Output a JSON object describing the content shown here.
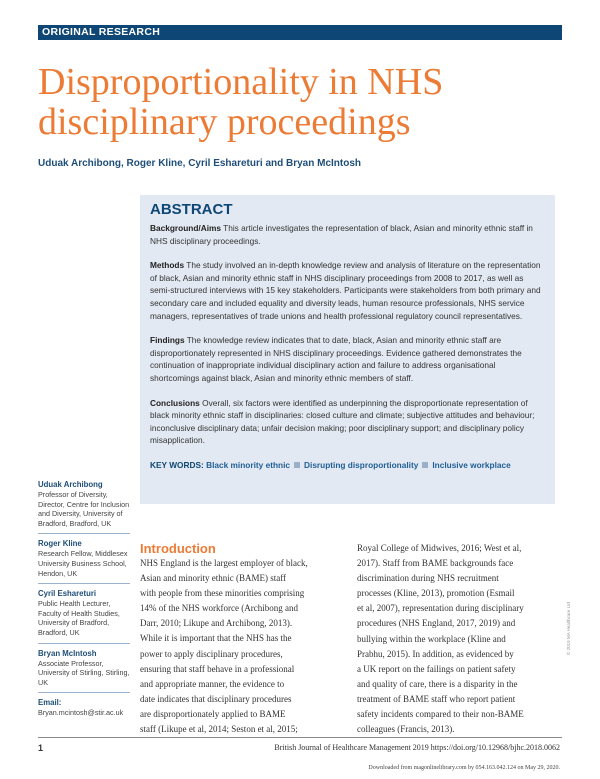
{
  "header": {
    "section": "ORIGINAL RESEARCH"
  },
  "title": {
    "line1": "Disproportionality in NHS",
    "line2": "disciplinary proceedings"
  },
  "authors": "Uduak Archibong, Roger Kline, Cyril Eshareturi and Bryan McIntosh",
  "abstract": {
    "heading": "ABSTRACT",
    "background_label": "Background/Aims",
    "background": "This article investigates the representation of black, Asian and minority ethnic staff in NHS disciplinary proceedings.",
    "methods_label": "Methods",
    "methods": "The study involved an in-depth knowledge review and analysis of literature on the representation of black, Asian and minority ethnic staff in NHS disciplinary proceedings from 2008 to 2017, as well as semi-structured interviews with 15 key stakeholders. Participants were stakeholders from both primary and secondary care and included equality and diversity leads, human resource professionals, NHS service managers, representatives of trade unions and health professional regulatory council representatives.",
    "findings_label": "Findings",
    "findings": "The knowledge review indicates that to date, black, Asian and minority ethnic staff are disproportionately represented in NHS disciplinary proceedings. Evidence gathered demonstrates the continuation of inappropriate individual disciplinary action and failure to address organisational shortcomings against black, Asian and minority ethnic members of staff.",
    "conclusions_label": "Conclusions",
    "conclusions": "Overall, six factors were identified as underpinning the disproportionate representation of black minority ethnic staff in disciplinaries: closed culture and climate; subjective attitudes and behaviour; inconclusive disciplinary data; unfair decision making; poor disciplinary support; and disciplinary policy misapplication.",
    "keywords_label": "KEY WORDS:",
    "keywords": [
      "Black minority ethnic",
      "Disrupting disproportionality",
      "Inclusive workplace"
    ]
  },
  "affiliations": [
    {
      "name": "Uduak Archibong",
      "detail": "Professor of Diversity, Director, Centre for Inclusion and Diversity, University of Bradford, Bradford, UK"
    },
    {
      "name": "Roger Kline",
      "detail": "Research Fellow, Middlesex University Business School, Hendon, UK"
    },
    {
      "name": "Cyril Eshareturi",
      "detail": "Public Health Lecturer, Faculty of Health Studies, University of Bradford, Bradford, UK"
    },
    {
      "name": "Bryan McIntosh",
      "detail": "Associate Professor, University of Stirling, Stirling, UK"
    },
    {
      "name": "Email:",
      "detail": "Bryan.mcintosh@stir.ac.uk"
    }
  ],
  "intro": {
    "heading": "Introduction",
    "col1": [
      "NHS England is the largest employer of black,",
      "Asian and minority ethnic (BAME) staff",
      "with people from these minorities comprising",
      "14% of the NHS workforce (Archibong and",
      "Darr, 2010; Likupe and Archibong, 2013).",
      "While it is important that the NHS has the",
      "power to apply disciplinary procedures,",
      "ensuring that staff behave in a professional",
      "and appropriate manner, the evidence to",
      "date indicates that disciplinary procedures",
      "are disproportionately applied to BAME",
      "staff (Likupe et al, 2014; Seston et al, 2015;"
    ],
    "col2": [
      "Royal College of Midwives, 2016; West et al,",
      "2017). Staff from BAME backgrounds face",
      "discrimination during NHS recruitment",
      "processes (Kline, 2013), promotion (Esmail",
      "et al, 2007), representation during disciplinary",
      "procedures (NHS England, 2017, 2019) and",
      "bullying within the workplace (Kline and",
      "Prabhu, 2015). In addition, as evidenced by",
      "a UK report on the failings on patient safety",
      "and quality of care, there is a disparity in the",
      "treatment of BAME staff who report patient",
      "safety incidents compared to their non-BAME",
      "colleagues (Francis, 2013)."
    ]
  },
  "copyright": "© 2019 MA Healthcare Ltd",
  "footer": {
    "page": "1",
    "journal": "British Journal of Healthcare Management 2019   https://doi.org/10.12968/bjhc.2018.0062",
    "download": "Downloaded from magonlinelibrary.com by 054.163.042.124 on May 29, 2020."
  },
  "colors": {
    "header": "#0e4775",
    "title": "#ec7b35",
    "abstract_bg": "#e3e9f2"
  }
}
